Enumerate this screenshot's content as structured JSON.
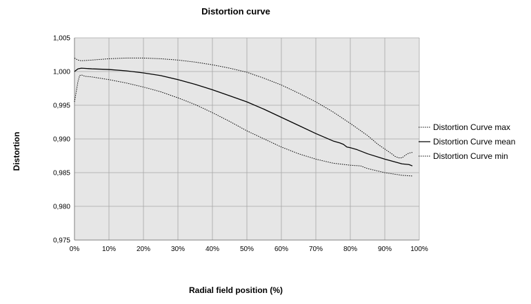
{
  "chart_data": {
    "type": "line",
    "title": "Distortion curve",
    "xlabel": "Radial field position (%)",
    "ylabel": "Distortion",
    "xlim": [
      0,
      100
    ],
    "ylim": [
      0.975,
      1.005
    ],
    "x_ticks": [
      0,
      10,
      20,
      30,
      40,
      50,
      60,
      70,
      80,
      90,
      100
    ],
    "x_tick_labels": [
      "0%",
      "10%",
      "20%",
      "30%",
      "40%",
      "50%",
      "60%",
      "70%",
      "80%",
      "90%",
      "100%"
    ],
    "y_ticks": [
      0.975,
      0.98,
      0.985,
      0.99,
      0.995,
      1.0,
      1.005
    ],
    "y_tick_labels": [
      "0,975",
      "0,980",
      "0,985",
      "0,990",
      "0,995",
      "1,000",
      "1,005"
    ],
    "grid": true,
    "legend_position": "right",
    "plot_background": "#e6e6e6",
    "series": [
      {
        "name": "Distortion Curve max",
        "style": "dotted",
        "points": [
          [
            0,
            1.002
          ],
          [
            1,
            1.0017
          ],
          [
            2,
            1.0016
          ],
          [
            5,
            1.0017
          ],
          [
            10,
            1.0019
          ],
          [
            15,
            1.002
          ],
          [
            20,
            1.002
          ],
          [
            25,
            1.0019
          ],
          [
            30,
            1.0017
          ],
          [
            35,
            1.0014
          ],
          [
            40,
            1.001
          ],
          [
            45,
            1.0005
          ],
          [
            50,
            0.9999
          ],
          [
            55,
            0.999
          ],
          [
            60,
            0.998
          ],
          [
            65,
            0.9968
          ],
          [
            70,
            0.9955
          ],
          [
            75,
            0.994
          ],
          [
            80,
            0.9923
          ],
          [
            85,
            0.9905
          ],
          [
            88,
            0.9892
          ],
          [
            90,
            0.9885
          ],
          [
            92,
            0.9878
          ],
          [
            93,
            0.9874
          ],
          [
            94,
            0.9872
          ],
          [
            95,
            0.9872
          ],
          [
            96,
            0.9876
          ],
          [
            97,
            0.9879
          ],
          [
            98,
            0.988
          ]
        ]
      },
      {
        "name": "Distortion Curve mean",
        "style": "solid",
        "points": [
          [
            0,
            1.0
          ],
          [
            1,
            1.0004
          ],
          [
            2,
            1.0005
          ],
          [
            5,
            1.0004
          ],
          [
            10,
            1.0003
          ],
          [
            15,
            1.0001
          ],
          [
            20,
            0.9998
          ],
          [
            25,
            0.9994
          ],
          [
            30,
            0.9988
          ],
          [
            35,
            0.9981
          ],
          [
            40,
            0.9973
          ],
          [
            45,
            0.9964
          ],
          [
            50,
            0.9955
          ],
          [
            55,
            0.9944
          ],
          [
            60,
            0.9932
          ],
          [
            65,
            0.992
          ],
          [
            70,
            0.9908
          ],
          [
            75,
            0.9897
          ],
          [
            77,
            0.9894
          ],
          [
            78,
            0.9892
          ],
          [
            79,
            0.9888
          ],
          [
            80,
            0.9887
          ],
          [
            82,
            0.9884
          ],
          [
            85,
            0.9878
          ],
          [
            90,
            0.987
          ],
          [
            95,
            0.9863
          ],
          [
            97,
            0.9862
          ],
          [
            98,
            0.986
          ]
        ]
      },
      {
        "name": "Distortion Curve min",
        "style": "dotted",
        "points": [
          [
            0,
            0.9955
          ],
          [
            0.5,
            0.997
          ],
          [
            1,
            0.9985
          ],
          [
            1.5,
            0.9994
          ],
          [
            2,
            0.9995
          ],
          [
            3,
            0.9993
          ],
          [
            5,
            0.9992
          ],
          [
            10,
            0.9988
          ],
          [
            15,
            0.9983
          ],
          [
            20,
            0.9977
          ],
          [
            25,
            0.997
          ],
          [
            30,
            0.9961
          ],
          [
            35,
            0.9951
          ],
          [
            40,
            0.9939
          ],
          [
            45,
            0.9926
          ],
          [
            50,
            0.9912
          ],
          [
            55,
            0.99
          ],
          [
            60,
            0.9888
          ],
          [
            65,
            0.9878
          ],
          [
            70,
            0.987
          ],
          [
            75,
            0.9864
          ],
          [
            80,
            0.9861
          ],
          [
            83,
            0.986
          ],
          [
            85,
            0.9856
          ],
          [
            90,
            0.985
          ],
          [
            95,
            0.9846
          ],
          [
            98,
            0.9845
          ]
        ]
      }
    ]
  }
}
